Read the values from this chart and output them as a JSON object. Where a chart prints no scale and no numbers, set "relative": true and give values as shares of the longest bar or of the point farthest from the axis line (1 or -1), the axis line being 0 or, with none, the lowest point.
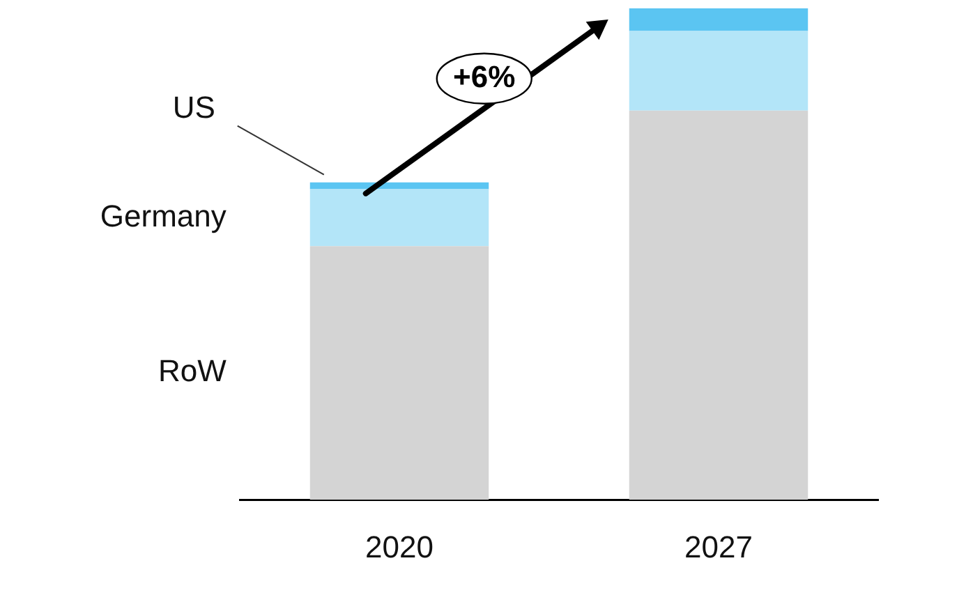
{
  "chart_data": {
    "type": "bar",
    "stacked": true,
    "relative": true,
    "legend": false,
    "grid": false,
    "categories": [
      "2020",
      "2027"
    ],
    "series": [
      {
        "name": "RoW",
        "color": "#d4d4d4",
        "values": [
          0.516,
          0.792
        ]
      },
      {
        "name": "Germany",
        "color": "#b3e5f8",
        "values": [
          0.116,
          0.162
        ]
      },
      {
        "name": "US",
        "color": "#5bc5f2",
        "values": [
          0.014,
          0.046
        ]
      }
    ],
    "annotations": [
      "+6%"
    ]
  }
}
